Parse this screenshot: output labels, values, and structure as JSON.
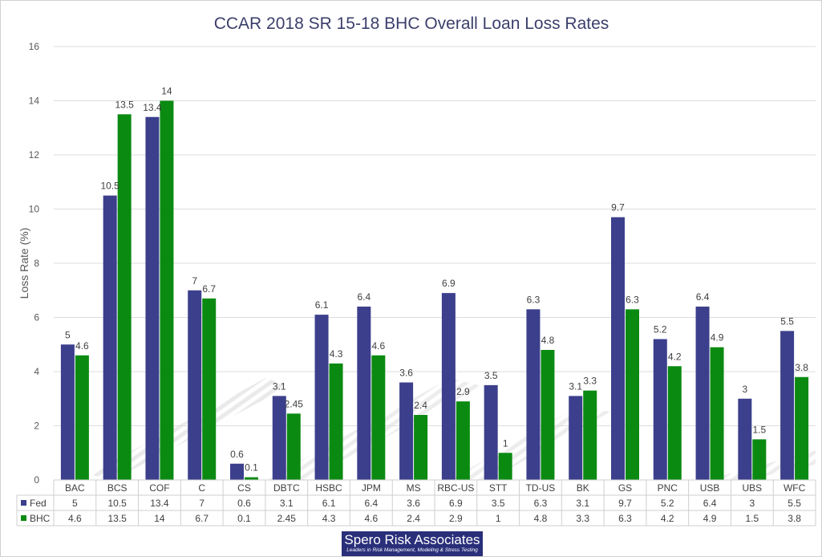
{
  "chart_data": {
    "type": "bar",
    "title": "CCAR 2018 SR 15-18 BHC Overall Loan Loss Rates",
    "ylabel": "Loss Rate (%)",
    "xlabel": "",
    "ylim": [
      0,
      16
    ],
    "yticks": [
      0,
      2,
      4,
      6,
      8,
      10,
      12,
      14,
      16
    ],
    "grid": true,
    "legend": "data-table",
    "categories": [
      "BAC",
      "BCS",
      "COF",
      "C",
      "CS",
      "DBTC",
      "HSBC",
      "JPM",
      "MS",
      "RBC-US",
      "STT",
      "TD-US",
      "BK",
      "GS",
      "PNC",
      "USB",
      "UBS",
      "WFC"
    ],
    "series": [
      {
        "name": "Fed",
        "color": "#3b3f8c",
        "values": [
          5,
          10.5,
          13.4,
          7,
          0.6,
          3.1,
          6.1,
          6.4,
          3.6,
          6.9,
          3.5,
          6.3,
          3.1,
          9.7,
          5.2,
          6.4,
          3,
          5.5
        ]
      },
      {
        "name": "BHC",
        "color": "#0b8a12",
        "values": [
          4.6,
          13.5,
          14,
          6.7,
          0.1,
          2.45,
          4.3,
          4.6,
          2.4,
          2.9,
          1,
          4.8,
          3.3,
          6.3,
          4.2,
          4.9,
          1.5,
          3.8
        ]
      }
    ]
  },
  "logo": {
    "brand": "Spero Risk Associates",
    "tagline": "Leaders in Risk Management, Modeling & Stress Testing"
  }
}
